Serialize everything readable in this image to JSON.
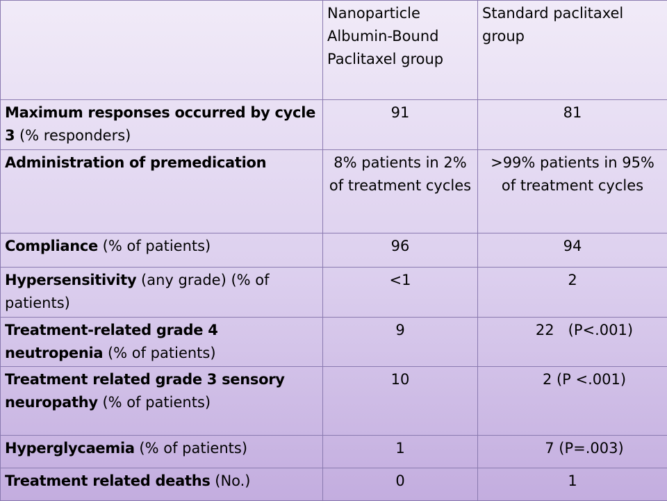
{
  "header": {
    "corner": "",
    "col_a": "Nanoparticle Albumin-Bound Paclitaxel group",
    "col_b": "Standard paclitaxel group"
  },
  "rows": [
    {
      "label_bold": "Maximum responses occurred by cycle 3",
      "label_rest": " (% responders)",
      "a": "91",
      "b": "81"
    },
    {
      "label_bold": "Administration of premedication",
      "label_rest": "",
      "a": "8% patients in 2% of treatment cycles",
      "b": ">99% patients in 95% of treatment cycles"
    },
    {
      "label_bold": "Compliance",
      "label_rest": " (% of patients)",
      "a": "96",
      "b": "94"
    },
    {
      "label_bold": "Hypersensitivity",
      "label_rest": " (any grade) (% of patients)",
      "a": "<1",
      "b": "2"
    },
    {
      "label_bold": "Treatment-related grade 4 neutropenia",
      "label_rest": " (% of patients)",
      "a": "9",
      "b": "22   (P<.001)"
    },
    {
      "label_bold": "Treatment related grade 3 sensory neuropathy",
      "label_rest": " (% of patients)",
      "a": "10",
      "b": "2 (P <.001)"
    },
    {
      "label_bold": "Hyperglycaemia",
      "label_rest": " (% of patients)",
      "a": "1",
      "b": "7 (P=.003)"
    },
    {
      "label_bold": "Treatment related deaths",
      "label_rest": " (No.)",
      "a": "0",
      "b": "1"
    }
  ]
}
